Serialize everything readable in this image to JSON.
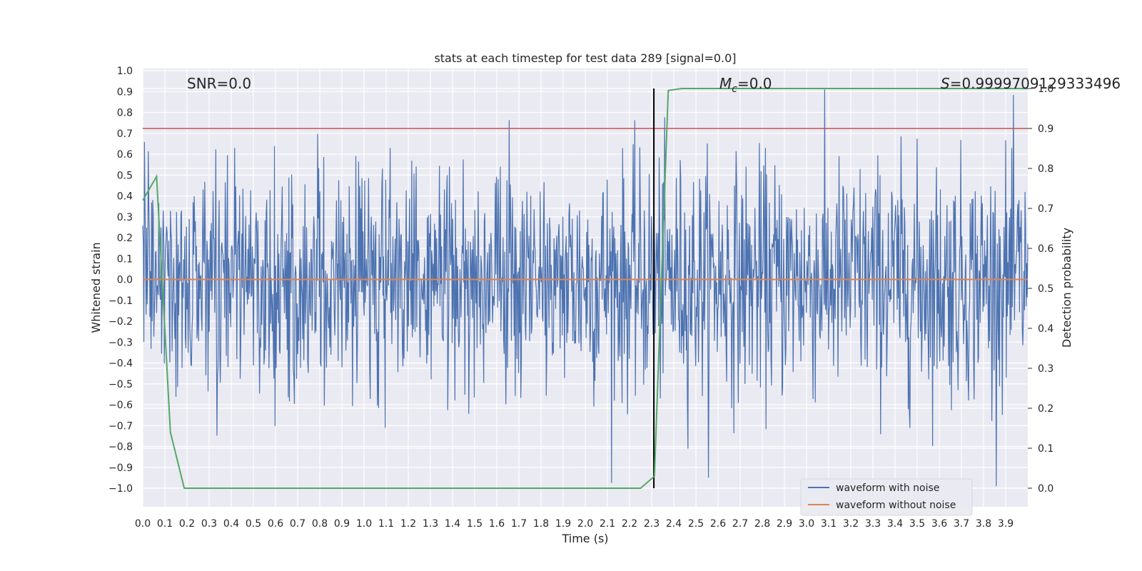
{
  "chart_data": {
    "type": "line",
    "title": "stats at each timestep for test data 289 [signal=0.0]",
    "xlabel": "Time (s)",
    "ylabel": "Whitened strain",
    "y2label": "Detection probability",
    "xlim": [
      0.0,
      4.0
    ],
    "ylim": [
      -1.09,
      1.0
    ],
    "y2lim": [
      -0.05,
      1.0
    ],
    "x_ticks": [
      "0.0",
      "0.1",
      "0.2",
      "0.3",
      "0.4",
      "0.5",
      "0.6",
      "0.7",
      "0.8",
      "0.9",
      "1.0",
      "1.1",
      "1.2",
      "1.3",
      "1.4",
      "1.5",
      "1.6",
      "1.7",
      "1.8",
      "1.9",
      "2.0",
      "2.1",
      "2.2",
      "2.3",
      "2.4",
      "2.5",
      "2.6",
      "2.7",
      "2.8",
      "2.9",
      "3.0",
      "3.1",
      "3.2",
      "3.3",
      "3.4",
      "3.5",
      "3.6",
      "3.7",
      "3.8",
      "3.9"
    ],
    "y_ticks": [
      "−1.0",
      "−0.9",
      "−0.8",
      "−0.7",
      "−0.6",
      "−0.5",
      "−0.4",
      "−0.3",
      "−0.2",
      "−0.1",
      "0.0",
      "0.1",
      "0.2",
      "0.3",
      "0.4",
      "0.5",
      "0.6",
      "0.7",
      "0.8",
      "0.9",
      "1.0"
    ],
    "y2_ticks": [
      "0.0",
      "0.1",
      "0.2",
      "0.3",
      "0.4",
      "0.5",
      "0.6",
      "0.7",
      "0.8",
      "0.9",
      "1.0"
    ],
    "annotations": {
      "snr": "SNR=0.0",
      "mc_symbol": "M",
      "mc_sub": "c",
      "mc_value": "=0.0",
      "s_symbol": "S",
      "s_value": "=0.9999709129333496"
    },
    "threshold_y2": 0.9,
    "marker_x": 2.31,
    "series": [
      {
        "name": "waveform with noise",
        "color": "#4c72b0",
        "description_note": "dense noisy strain series, roughly Gaussian with std ~0.28, peaks near +0.91 and -0.99",
        "sample_count": 1600,
        "amplitude_std": 0.28,
        "peak_max": 0.91,
        "peak_min": -0.99
      },
      {
        "name": "waveform without noise",
        "color": "#dd8452",
        "x": [
          0.0,
          4.0
        ],
        "y": [
          0.0,
          0.0
        ]
      },
      {
        "color": "#55a868",
        "axis": "y2",
        "x": [
          0.0,
          0.0625,
          0.125,
          0.1875,
          0.25,
          0.3125,
          2.25,
          2.3125,
          2.375,
          2.4375,
          4.0
        ],
        "y": [
          0.72,
          0.78,
          0.14,
          0.0,
          0.0,
          0.0,
          0.0,
          0.03,
          0.995,
          1.0,
          1.0
        ]
      }
    ],
    "threshold_color": "#c44e52",
    "marker_color": "#000000",
    "legend": {
      "placement": "lower-right",
      "entries": [
        "waveform with noise",
        "waveform without noise"
      ]
    },
    "grid": true
  }
}
